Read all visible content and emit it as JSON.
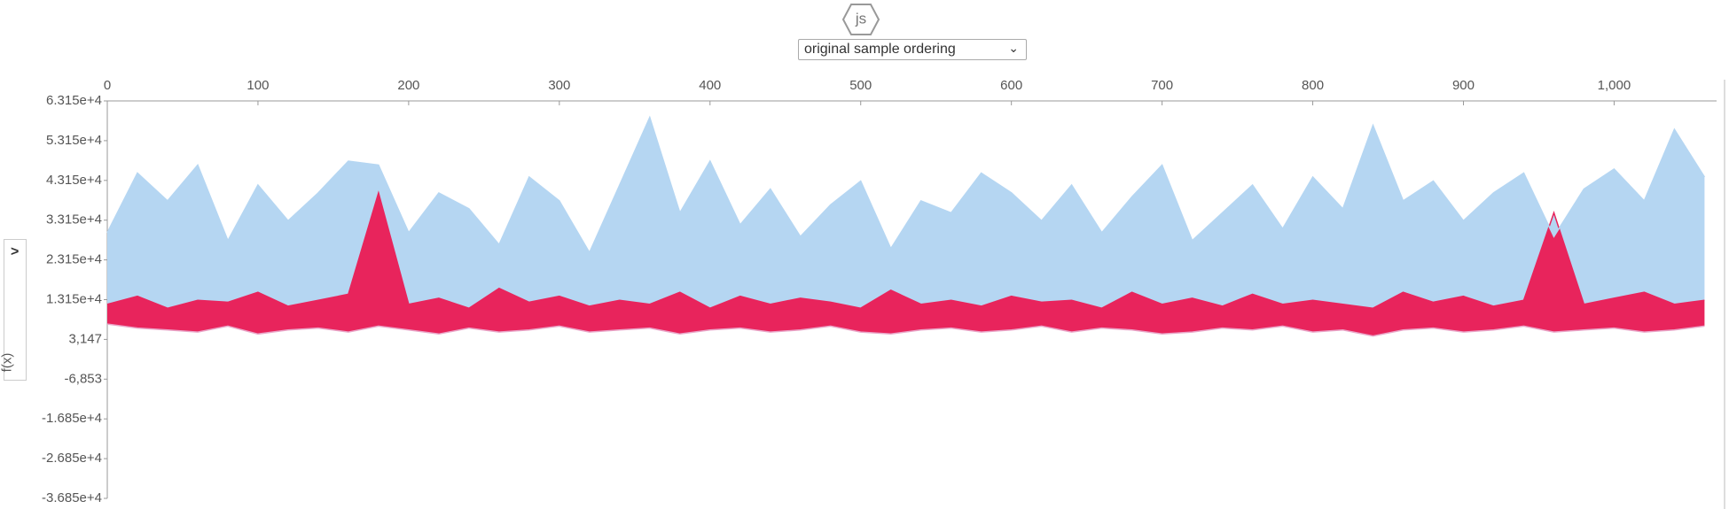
{
  "logo": "js",
  "dropdown": "original sample ordering",
  "chart_data": {
    "type": "band-area",
    "y_label": "f(x)",
    "x": [
      0,
      20,
      40,
      60,
      80,
      100,
      120,
      140,
      160,
      180,
      200,
      220,
      240,
      260,
      280,
      300,
      320,
      340,
      360,
      380,
      400,
      420,
      440,
      460,
      480,
      500,
      520,
      540,
      560,
      580,
      600,
      620,
      640,
      660,
      680,
      700,
      720,
      740,
      760,
      780,
      800,
      820,
      840,
      860,
      880,
      900,
      920,
      940,
      960,
      980,
      1000,
      1020,
      1040,
      1060
    ],
    "series": [
      {
        "color": "#e9a6c8",
        "values": [
          7000,
          6000,
          5500,
          5000,
          6500,
          4500,
          5500,
          6000,
          5000,
          6500,
          5500,
          4500,
          6000,
          5000,
          5500,
          6500,
          5000,
          5500,
          6000,
          4500,
          5500,
          6000,
          5000,
          5500,
          6500,
          5000,
          4500,
          5500,
          6000,
          5000,
          5500,
          6500,
          5000,
          6000,
          5500,
          4500,
          5000,
          6000,
          5500,
          6500,
          5000,
          5500,
          4000,
          5500,
          6000,
          5000,
          5500,
          6500,
          5000,
          5500,
          6000,
          5000,
          5500,
          6500
        ]
      },
      {
        "color": "#e8245c",
        "values": [
          12000,
          14000,
          11000,
          13000,
          12500,
          15000,
          11500,
          13000,
          14500,
          40000,
          12000,
          13500,
          11000,
          16000,
          12500,
          14000,
          11500,
          13000,
          12000,
          15000,
          11000,
          14000,
          12000,
          13500,
          12500,
          11000,
          15500,
          12000,
          13000,
          11500,
          14000,
          12500,
          13000,
          11000,
          15000,
          12000,
          13500,
          11500,
          14500,
          12000,
          13000,
          12000,
          11000,
          15000,
          12500,
          14000,
          11500,
          13000,
          35000,
          12000,
          13500,
          15000,
          12000,
          13000
        ]
      },
      {
        "color": "#b5d6f2",
        "values": [
          30000,
          45000,
          38000,
          47000,
          28000,
          42000,
          33000,
          40000,
          48000,
          47000,
          30000,
          40000,
          36000,
          27000,
          44000,
          38000,
          25000,
          42000,
          59000,
          35000,
          48000,
          32000,
          41000,
          29000,
          37000,
          43000,
          26000,
          38000,
          35000,
          45000,
          40000,
          33000,
          42000,
          30000,
          39000,
          47000,
          28000,
          35000,
          42000,
          31000,
          44000,
          36000,
          57000,
          38000,
          43000,
          33000,
          40000,
          45000,
          29000,
          41000,
          46000,
          38000,
          56000,
          44000
        ]
      }
    ],
    "xlim": [
      0,
      1068
    ],
    "xticks": [
      0,
      100,
      200,
      300,
      400,
      500,
      600,
      700,
      800,
      900,
      {
        "value": 1000,
        "label": "1,000"
      }
    ],
    "ylim": [
      -36850,
      63150
    ],
    "yticks": [
      {
        "value": 63150,
        "label": "6.315e+4"
      },
      {
        "value": 53150,
        "label": "5.315e+4"
      },
      {
        "value": 43150,
        "label": "4.315e+4"
      },
      {
        "value": 33150,
        "label": "3.315e+4"
      },
      {
        "value": 23150,
        "label": "2.315e+4"
      },
      {
        "value": 13150,
        "label": "1.315e+4"
      },
      {
        "value": 3147,
        "label": "3,147"
      },
      {
        "value": -6853,
        "label": "-6,853"
      },
      {
        "value": -16850,
        "label": "-1.685e+4"
      },
      {
        "value": -26850,
        "label": "-2.685e+4"
      },
      {
        "value": -36850,
        "label": "-3.685e+4"
      }
    ]
  }
}
